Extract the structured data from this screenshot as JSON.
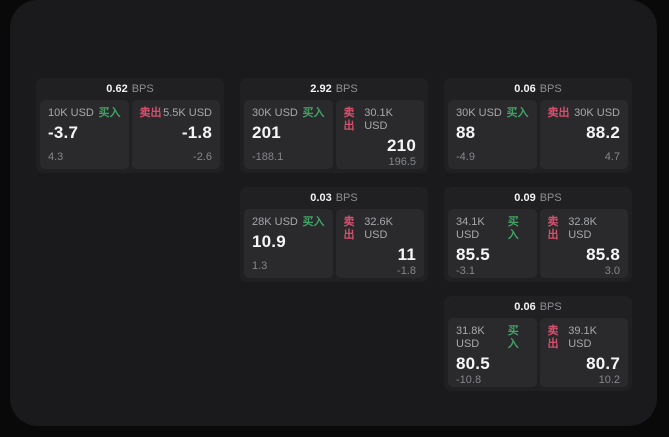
{
  "colors": {
    "buy": "#41a266",
    "sell": "#d5506c",
    "surface": "#1a1a1c",
    "card": "#202023",
    "panel": "#2a2a2d"
  },
  "labels": {
    "bps_unit": "BPS",
    "buy": "买入",
    "sell": "卖出"
  },
  "cards": [
    {
      "bps": "0.62",
      "buy": {
        "amount": "10K USD",
        "price": "-3.7",
        "delta": "4.3"
      },
      "sell": {
        "amount": "5.5K USD",
        "price": "-1.8",
        "delta": "-2.6"
      }
    },
    {
      "bps": "2.92",
      "buy": {
        "amount": "30K USD",
        "price": "201",
        "delta": "-188.1"
      },
      "sell": {
        "amount": "30.1K USD",
        "price": "210",
        "delta": "196.5"
      }
    },
    {
      "bps": "0.06",
      "buy": {
        "amount": "30K USD",
        "price": "88",
        "delta": "-4.9"
      },
      "sell": {
        "amount": "30K USD",
        "price": "88.2",
        "delta": "4.7"
      }
    },
    {
      "bps": "0.03",
      "buy": {
        "amount": "28K USD",
        "price": "10.9",
        "delta": "1.3"
      },
      "sell": {
        "amount": "32.6K USD",
        "price": "11",
        "delta": "-1.8"
      }
    },
    {
      "bps": "0.09",
      "buy": {
        "amount": "34.1K USD",
        "price": "85.5",
        "delta": "-3.1"
      },
      "sell": {
        "amount": "32.8K USD",
        "price": "85.8",
        "delta": "3.0"
      }
    },
    {
      "bps": "0.06",
      "buy": {
        "amount": "31.8K USD",
        "price": "80.5",
        "delta": "-10.8"
      },
      "sell": {
        "amount": "39.1K USD",
        "price": "80.7",
        "delta": "10.2"
      }
    }
  ]
}
